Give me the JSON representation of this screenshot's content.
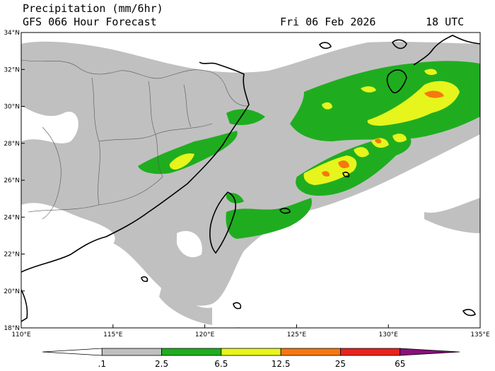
{
  "header": {
    "title_line1": "Precipitation (mm/6hr)",
    "title_line2": "GFS 066 Hour Forecast",
    "date": "Fri 06 Feb 2026",
    "time": "18 UTC"
  },
  "map": {
    "lat_labels": [
      "34°N",
      "32°N",
      "30°N",
      "28°N",
      "26°N",
      "24°N",
      "22°N",
      "20°N",
      "18°N"
    ],
    "lon_labels": [
      "110°E",
      "115°E",
      "120°E",
      "125°E",
      "130°E",
      "135°E"
    ],
    "lat_range": [
      18,
      34
    ],
    "lon_range": [
      110,
      135
    ]
  },
  "colorbar": {
    "labels": [
      ".1",
      "2.5",
      "6.5",
      "12.5",
      "25",
      "65"
    ],
    "colors": [
      "#ffffff",
      "#c0c0c0",
      "#1fad1f",
      "#e6f51b",
      "#f5780f",
      "#e8221c",
      "#8c0f78"
    ]
  },
  "precip_colors": {
    "light": "#c0c0c0",
    "moderate": "#1fad1f",
    "heavy": "#e6f51b",
    "very_heavy": "#f5780f",
    "extreme": "#e8221c"
  }
}
